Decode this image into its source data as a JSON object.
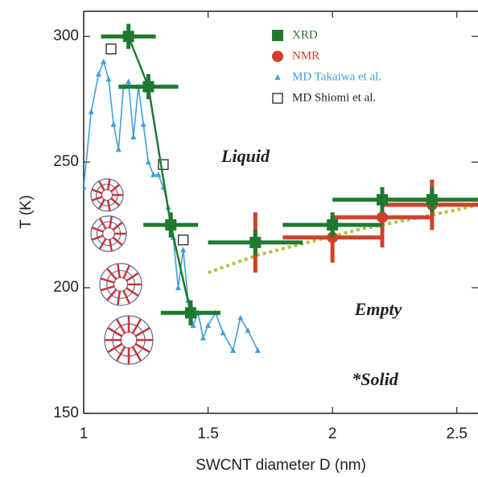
{
  "chart_data": {
    "type": "scatter",
    "xlabel": "SWCNT diameter D (nm)",
    "ylabel": "T (K)",
    "xlim": [
      1,
      2.585
    ],
    "ylim": [
      150,
      310
    ],
    "xticks": [
      1,
      1.5,
      2,
      2.5
    ],
    "yticks": [
      150,
      200,
      250,
      300
    ],
    "legend": "upper right",
    "series": [
      {
        "name": "XRD",
        "color": "#1f7a30",
        "marker": "square",
        "connected_count": 4,
        "x": [
          1.18,
          1.26,
          1.35,
          1.43,
          1.69,
          2.0,
          2.2,
          2.4
        ],
        "values": [
          300,
          280,
          225,
          190,
          218,
          225,
          235,
          235
        ],
        "xerr": [
          0.11,
          0.12,
          0.11,
          0.12,
          0.19,
          0.2,
          0.2,
          0.2
        ],
        "yerr": [
          5,
          5,
          5,
          5,
          5,
          5,
          5,
          5
        ]
      },
      {
        "name": "NMR",
        "color": "#cf4128",
        "marker": "circle",
        "x": [
          1.69,
          2.0,
          2.2,
          2.4
        ],
        "values": [
          218,
          220,
          228,
          233
        ],
        "xerr": [
          0,
          0.2,
          0.2,
          0.2
        ],
        "yerr": [
          12,
          10,
          12,
          10
        ]
      },
      {
        "name": "MD Takaiwa et al.",
        "color": "#3f9fdf",
        "marker": "triangle",
        "line": true,
        "x": [
          1.0,
          1.03,
          1.06,
          1.08,
          1.1,
          1.12,
          1.14,
          1.16,
          1.18,
          1.2,
          1.22,
          1.24,
          1.26,
          1.28,
          1.3,
          1.32,
          1.34,
          1.36,
          1.38,
          1.4,
          1.42,
          1.44,
          1.46,
          1.48,
          1.5,
          1.53,
          1.56,
          1.6,
          1.63,
          1.66,
          1.7
        ],
        "values": [
          240,
          270,
          285,
          290,
          283,
          265,
          255,
          280,
          282,
          260,
          280,
          265,
          250,
          245,
          245,
          240,
          232,
          220,
          200,
          215,
          195,
          185,
          190,
          180,
          185,
          190,
          182,
          175,
          188,
          183,
          175
        ]
      },
      {
        "name": "MD Shiomi et al.",
        "color": "#222222",
        "marker": "open-square",
        "x": [
          1.11,
          1.32,
          1.4
        ],
        "values": [
          295,
          249,
          219
        ]
      }
    ],
    "fit": {
      "color": "#a9c83c",
      "x": [
        1.5,
        1.7,
        1.9,
        2.1,
        2.3,
        2.5,
        2.585
      ],
      "values": [
        206,
        213,
        218,
        223,
        227,
        231,
        233
      ]
    },
    "annotations": [
      "Liquid",
      "Empty",
      "*Solid"
    ]
  }
}
